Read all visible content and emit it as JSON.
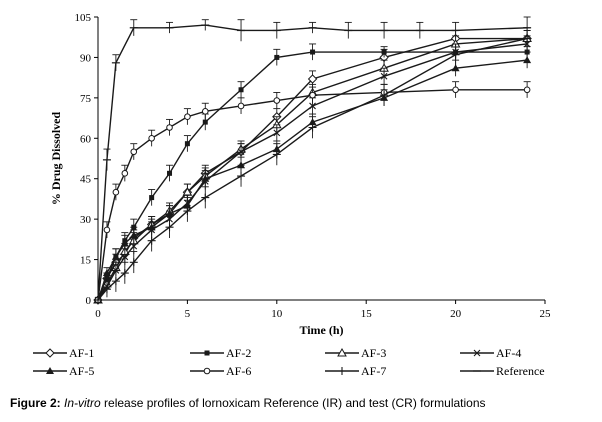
{
  "caption": {
    "label": "Figure 2:",
    "italic": "In-vitro",
    "text": "release profiles of lornoxicam Reference (IR) and test (CR) formulations"
  },
  "chart_data": {
    "type": "line",
    "xlabel": "Time (h)",
    "ylabel": "% Drug Dissolved",
    "xlim": [
      0,
      25
    ],
    "ylim": [
      0,
      105
    ],
    "xticks": [
      0,
      5,
      10,
      15,
      20,
      25
    ],
    "yticks": [
      0,
      15,
      30,
      45,
      60,
      75,
      90,
      105
    ],
    "grid": false,
    "legend": "bottom",
    "error_bars": true,
    "series": [
      {
        "name": "AF-1",
        "marker": "diamond-open",
        "x": [
          0,
          0.5,
          1,
          1.5,
          2,
          3,
          4,
          5,
          6,
          8,
          10,
          12,
          16,
          20,
          24
        ],
        "y": [
          0,
          8,
          14,
          17,
          23,
          28,
          32,
          40,
          47,
          55,
          68,
          82,
          90,
          97,
          97
        ],
        "err": [
          0,
          2,
          3,
          3,
          3,
          3,
          3,
          3,
          3,
          3,
          3,
          3,
          3,
          3,
          3
        ]
      },
      {
        "name": "AF-2",
        "marker": "square-filled",
        "x": [
          0,
          0.5,
          1,
          1.5,
          2,
          3,
          4,
          5,
          6,
          8,
          10,
          12,
          16,
          20,
          24
        ],
        "y": [
          0,
          8,
          16,
          22,
          27,
          38,
          47,
          58,
          66,
          78,
          90,
          92,
          92,
          92,
          92
        ],
        "err": [
          0,
          2,
          3,
          3,
          3,
          3,
          3,
          3,
          3,
          3,
          3,
          3,
          2,
          2,
          2
        ]
      },
      {
        "name": "AF-3",
        "marker": "triangle-open",
        "x": [
          0,
          0.5,
          1,
          1.5,
          2,
          3,
          4,
          5,
          6,
          8,
          10,
          12,
          16,
          20,
          24
        ],
        "y": [
          0,
          6,
          12,
          18,
          22,
          28,
          33,
          40,
          46,
          56,
          65,
          77,
          86,
          95,
          97
        ],
        "err": [
          0,
          2,
          2,
          3,
          3,
          3,
          3,
          3,
          3,
          3,
          3,
          3,
          3,
          3,
          3
        ]
      },
      {
        "name": "AF-4",
        "marker": "x",
        "x": [
          0,
          0.5,
          1,
          1.5,
          2,
          3,
          4,
          5,
          6,
          8,
          10,
          12,
          16,
          20,
          24
        ],
        "y": [
          0,
          5,
          11,
          16,
          20,
          26,
          30,
          36,
          44,
          55,
          62,
          72,
          83,
          92,
          95
        ],
        "err": [
          0,
          2,
          2,
          3,
          3,
          3,
          3,
          3,
          3,
          3,
          3,
          3,
          3,
          3,
          3
        ]
      },
      {
        "name": "AF-5",
        "marker": "triangle-filled",
        "x": [
          0,
          0.5,
          1,
          1.5,
          2,
          3,
          4,
          5,
          6,
          8,
          10,
          12,
          16,
          20,
          24
        ],
        "y": [
          0,
          10,
          16,
          21,
          24,
          27,
          32,
          35,
          45,
          50,
          56,
          66,
          75,
          86,
          89
        ],
        "err": [
          0,
          2,
          3,
          3,
          3,
          3,
          3,
          3,
          3,
          3,
          3,
          3,
          3,
          3,
          3
        ]
      },
      {
        "name": "AF-6",
        "marker": "circle-open",
        "x": [
          0,
          0.5,
          1,
          1.5,
          2,
          3,
          4,
          5,
          6,
          8,
          10,
          12,
          16,
          20,
          24
        ],
        "y": [
          0,
          26,
          40,
          47,
          55,
          60,
          64,
          68,
          70,
          72,
          74,
          76,
          77,
          78,
          78
        ],
        "err": [
          0,
          3,
          3,
          3,
          3,
          3,
          3,
          3,
          3,
          3,
          3,
          3,
          3,
          3,
          3
        ]
      },
      {
        "name": "AF-7",
        "marker": "plus",
        "x": [
          0,
          0.5,
          1,
          1.5,
          2,
          3,
          4,
          5,
          6,
          8,
          10,
          12,
          16,
          20,
          24
        ],
        "y": [
          0,
          4,
          7,
          10,
          14,
          22,
          27,
          33,
          38,
          46,
          54,
          64,
          76,
          91,
          97
        ],
        "err": [
          0,
          3,
          4,
          4,
          4,
          4,
          4,
          4,
          4,
          4,
          4,
          4,
          4,
          4,
          4
        ]
      },
      {
        "name": "Reference",
        "marker": "dash",
        "x": [
          0,
          0.5,
          1,
          2,
          4,
          6,
          8,
          10,
          12,
          14,
          16,
          18,
          20,
          24
        ],
        "y": [
          0,
          52,
          88,
          101,
          101,
          102,
          100,
          100,
          101,
          100,
          100,
          100,
          100,
          101
        ],
        "err": [
          0,
          4,
          3,
          3,
          2,
          2,
          4,
          3,
          2,
          3,
          3,
          3,
          3,
          4
        ]
      }
    ]
  }
}
